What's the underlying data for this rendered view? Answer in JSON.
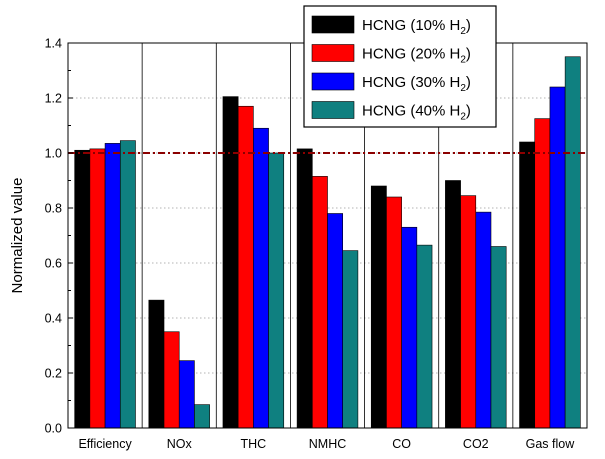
{
  "chart_data": {
    "type": "bar",
    "ylabel": "Normalized value",
    "xlabel": "",
    "ylim": [
      0,
      1.4
    ],
    "yticks": [
      "0.0",
      "0.2",
      "0.4",
      "0.6",
      "0.8",
      "1.0",
      "1.2",
      "1.4"
    ],
    "grid": "horizontal dotted",
    "reference_line": {
      "value": 1.0,
      "color": "#8b0000",
      "style": "dash-dot"
    },
    "legend_position": "top-right",
    "categories": [
      "Efficiency",
      "NOx",
      "THC",
      "NMHC",
      "CO",
      "CO2",
      "Gas flow"
    ],
    "series": [
      {
        "name": "HCNG (10% H",
        "subscript": "2",
        "suffix": ")",
        "color": "#000000",
        "values": [
          1.01,
          0.465,
          1.205,
          1.015,
          0.88,
          0.9,
          1.04
        ]
      },
      {
        "name": "HCNG (20% H",
        "subscript": "2",
        "suffix": ")",
        "color": "#ff0000",
        "values": [
          1.015,
          0.35,
          1.17,
          0.915,
          0.84,
          0.845,
          1.125
        ]
      },
      {
        "name": "HCNG (30% H",
        "subscript": "2",
        "suffix": ")",
        "color": "#0000ff",
        "values": [
          1.035,
          0.245,
          1.09,
          0.78,
          0.73,
          0.785,
          1.24
        ]
      },
      {
        "name": "HCNG (40% H",
        "subscript": "2",
        "suffix": ")",
        "color": "#0f8080",
        "values": [
          1.045,
          0.085,
          1.0,
          0.645,
          0.665,
          0.66,
          1.35
        ]
      }
    ]
  }
}
